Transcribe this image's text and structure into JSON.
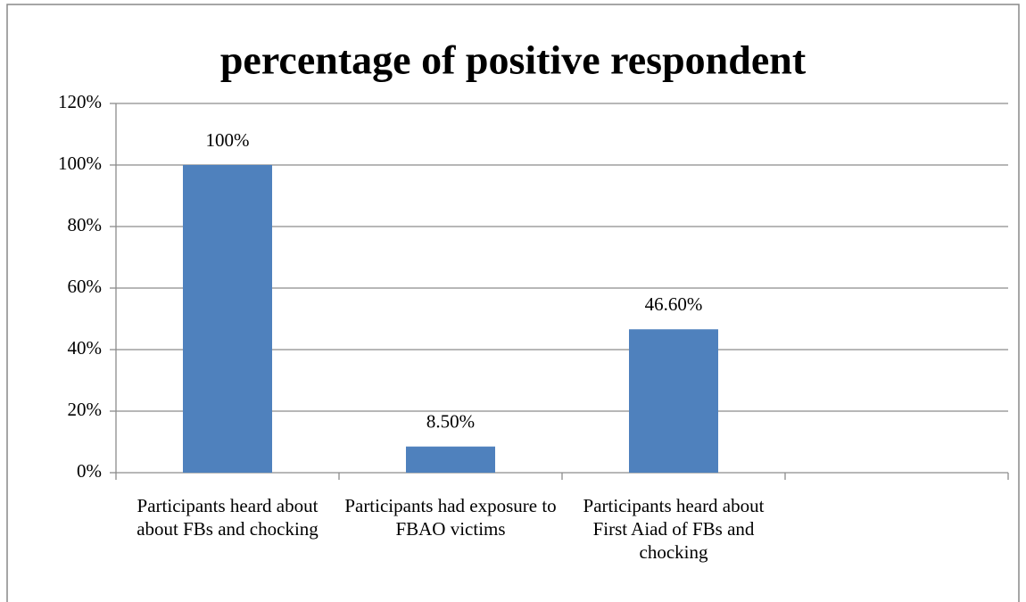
{
  "chart_data": {
    "type": "bar",
    "title": "percentage of positive respondent",
    "categories": [
      "Participants heard about about FBs and chocking",
      "Participants had exposure to FBAO victims",
      "Participants heard about First Aiad of FBs and chocking",
      null
    ],
    "values": [
      100,
      8.5,
      46.6,
      null
    ],
    "value_labels": [
      "100%",
      "8.50%",
      "46.60%",
      null
    ],
    "color": "#4f81bd",
    "ylim": [
      0,
      120
    ],
    "yticks": [
      {
        "value": 0,
        "label": "0%"
      },
      {
        "value": 20,
        "label": "20%"
      },
      {
        "value": 40,
        "label": "40%"
      },
      {
        "value": 60,
        "label": "60%"
      },
      {
        "value": 80,
        "label": "80%"
      },
      {
        "value": 100,
        "label": "100%"
      },
      {
        "value": 120,
        "label": "120%"
      }
    ],
    "grid": true
  }
}
